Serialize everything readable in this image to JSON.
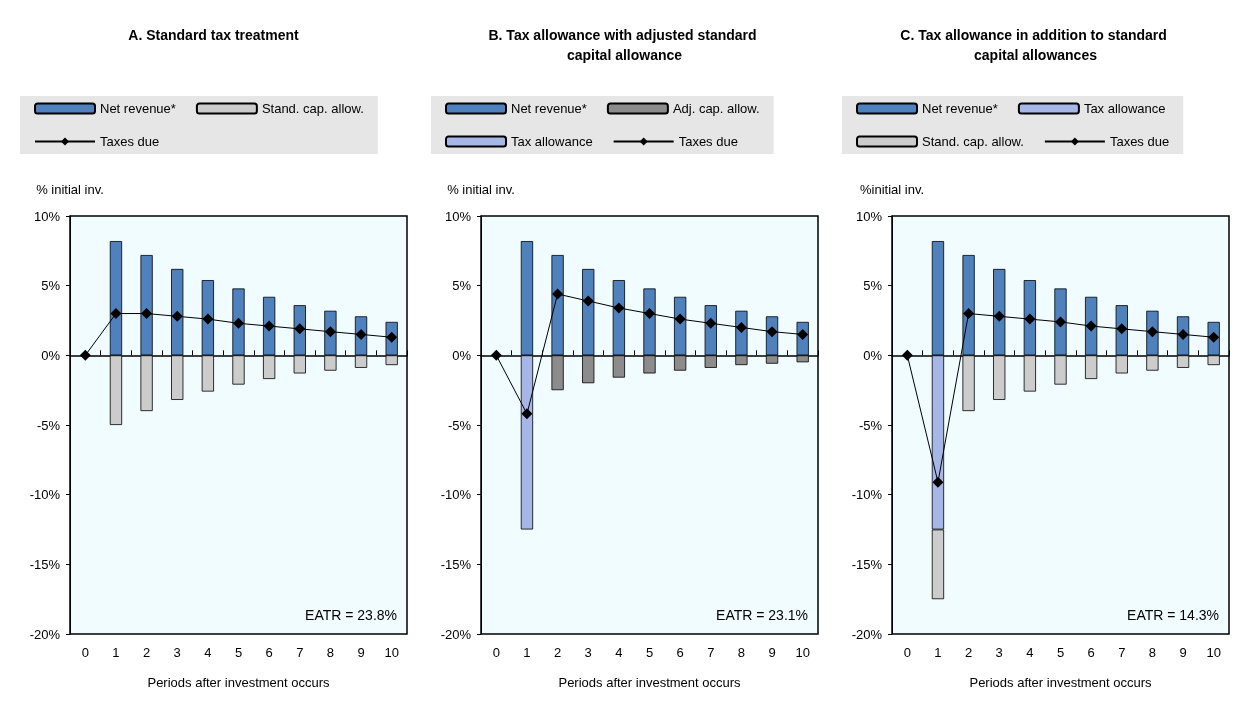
{
  "chart_data": [
    {
      "type": "bar",
      "title": "A. Standard tax treatment",
      "ylabel": "% initial inv.",
      "xlabel": "Periods after investment occurs",
      "categories": [
        "0",
        "1",
        "2",
        "3",
        "4",
        "5",
        "6",
        "7",
        "8",
        "9",
        "10"
      ],
      "stacked": true,
      "ylim": [
        -20,
        10
      ],
      "yticks": [
        {
          "value": -20,
          "label": "-20%"
        },
        {
          "value": -15,
          "label": "-15%"
        },
        {
          "value": -10,
          "label": "-10%"
        },
        {
          "value": -5,
          "label": "-5%"
        },
        {
          "value": 0,
          "label": "0%"
        },
        {
          "value": 5,
          "label": "5%"
        },
        {
          "value": 10,
          "label": "10%"
        }
      ],
      "legend": "top",
      "marker": "diamond",
      "annotations": [
        "EATR = 23.8%"
      ],
      "series": [
        {
          "name": "Net revenue*",
          "color": "#4f81bd",
          "values": [
            null,
            8.2,
            7.2,
            6.2,
            5.4,
            4.8,
            4.2,
            3.6,
            3.2,
            2.8,
            2.4
          ]
        },
        {
          "name": "Stand. cap. allow.",
          "color": "#cccccc",
          "values": [
            null,
            -5,
            -4,
            -3.2,
            -2.6,
            -2.1,
            -1.7,
            -1.3,
            -1.1,
            -0.9,
            -0.7
          ]
        },
        {
          "name": "Taxes due",
          "type": "line",
          "color": "#000000",
          "values": [
            0,
            3.0,
            3.0,
            2.8,
            2.6,
            2.3,
            2.1,
            1.9,
            1.7,
            1.5,
            1.3
          ]
        }
      ]
    },
    {
      "type": "bar",
      "title": "B. Tax allowance with adjusted standard capital allowance",
      "ylabel": "% initial inv.",
      "xlabel": "Periods after investment occurs",
      "categories": [
        "0",
        "1",
        "2",
        "3",
        "4",
        "5",
        "6",
        "7",
        "8",
        "9",
        "10"
      ],
      "stacked": true,
      "ylim": [
        -20,
        10
      ],
      "yticks": [
        {
          "value": -20,
          "label": "-20%"
        },
        {
          "value": -15,
          "label": "-15%"
        },
        {
          "value": -10,
          "label": "-10%"
        },
        {
          "value": -5,
          "label": "-5%"
        },
        {
          "value": 0,
          "label": "0%"
        },
        {
          "value": 5,
          "label": "5%"
        },
        {
          "value": 10,
          "label": "10%"
        }
      ],
      "legend": "top",
      "marker": "diamond",
      "annotations": [
        "EATR = 23.1%"
      ],
      "series": [
        {
          "name": "Net revenue*",
          "color": "#4f81bd",
          "values": [
            null,
            8.2,
            7.2,
            6.2,
            5.4,
            4.8,
            4.2,
            3.6,
            3.2,
            2.8,
            2.4
          ]
        },
        {
          "name": "Adj. cap. allow.",
          "color": "#8c8c8c",
          "values": [
            null,
            null,
            -2.5,
            -2.0,
            -1.6,
            -1.3,
            -1.1,
            -0.9,
            -0.7,
            -0.6,
            -0.5
          ]
        },
        {
          "name": "Tax allowance",
          "color": "#a6b6e6",
          "values": [
            null,
            -12.5,
            null,
            null,
            null,
            null,
            null,
            null,
            null,
            null,
            null
          ]
        },
        {
          "name": "Taxes due",
          "type": "line",
          "color": "#000000",
          "values": [
            0,
            -4.2,
            4.4,
            3.9,
            3.4,
            3.0,
            2.6,
            2.3,
            2.0,
            1.7,
            1.5
          ]
        }
      ]
    },
    {
      "type": "bar",
      "title": "C. Tax allowance in addition to standard capital allowances",
      "ylabel": "%initial inv.",
      "xlabel": "Periods after investment occurs",
      "categories": [
        "0",
        "1",
        "2",
        "3",
        "4",
        "5",
        "6",
        "7",
        "8",
        "9",
        "10"
      ],
      "stacked": true,
      "ylim": [
        -20,
        10
      ],
      "yticks": [
        {
          "value": -20,
          "label": "-20%"
        },
        {
          "value": -15,
          "label": "-15%"
        },
        {
          "value": -10,
          "label": "-10%"
        },
        {
          "value": -5,
          "label": "-5%"
        },
        {
          "value": 0,
          "label": "0%"
        },
        {
          "value": 5,
          "label": "5%"
        },
        {
          "value": 10,
          "label": "10%"
        }
      ],
      "legend": "top",
      "marker": "diamond",
      "annotations": [
        "EATR = 14.3%"
      ],
      "series": [
        {
          "name": "Net revenue*",
          "color": "#4f81bd",
          "values": [
            null,
            8.2,
            7.2,
            6.2,
            5.4,
            4.8,
            4.2,
            3.6,
            3.2,
            2.8,
            2.4
          ]
        },
        {
          "name": "Tax allowance",
          "color": "#a6b6e6",
          "values": [
            null,
            -12.5,
            null,
            null,
            null,
            null,
            null,
            null,
            null,
            null,
            null
          ]
        },
        {
          "name": "Stand. cap. allow.",
          "color": "#cccccc",
          "values": [
            null,
            -5,
            -4,
            -3.2,
            -2.6,
            -2.1,
            -1.7,
            -1.3,
            -1.1,
            -0.9,
            -0.7
          ]
        },
        {
          "name": "Taxes due",
          "type": "line",
          "color": "#000000",
          "values": [
            0,
            -9.1,
            3.0,
            2.8,
            2.6,
            2.4,
            2.1,
            1.9,
            1.7,
            1.5,
            1.3
          ]
        }
      ]
    }
  ]
}
